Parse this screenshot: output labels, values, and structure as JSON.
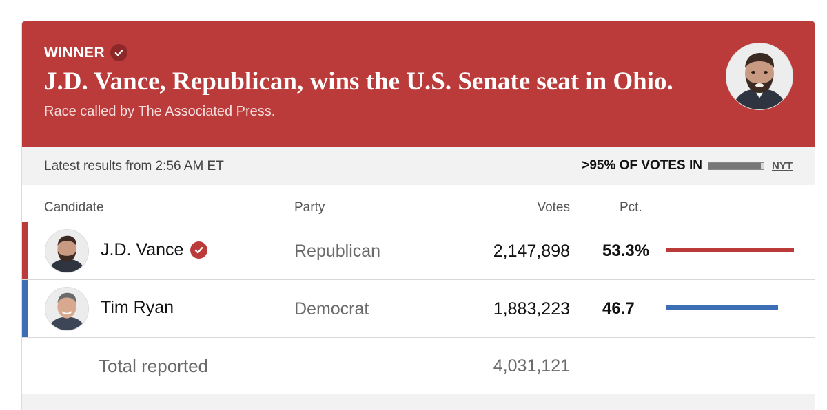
{
  "banner": {
    "winner_label": "WINNER",
    "headline": "J.D. Vance, Republican, wins the U.S. Senate seat in Ohio.",
    "called_by": "Race called by The Associated Press.",
    "background_color": "#bb3b3b"
  },
  "status": {
    "latest_results": "Latest results from 2:56 AM ET",
    "reporting_label": ">95% OF VOTES IN",
    "reporting_fraction": 0.95,
    "source": "NYT"
  },
  "table": {
    "columns": {
      "candidate": "Candidate",
      "party": "Party",
      "votes": "Votes",
      "pct": "Pct."
    },
    "rows": [
      {
        "name": "J.D. Vance",
        "winner": true,
        "party": "Republican",
        "votes": "2,147,898",
        "pct_text": "53.3%",
        "pct_value": 53.3,
        "color": "#bb3b3b"
      },
      {
        "name": "Tim Ryan",
        "winner": false,
        "party": "Democrat",
        "votes": "1,883,223",
        "pct_text": "46.7",
        "pct_value": 46.7,
        "color": "#3b6eb5"
      }
    ],
    "total": {
      "label": "Total reported",
      "votes": "4,031,121"
    }
  }
}
